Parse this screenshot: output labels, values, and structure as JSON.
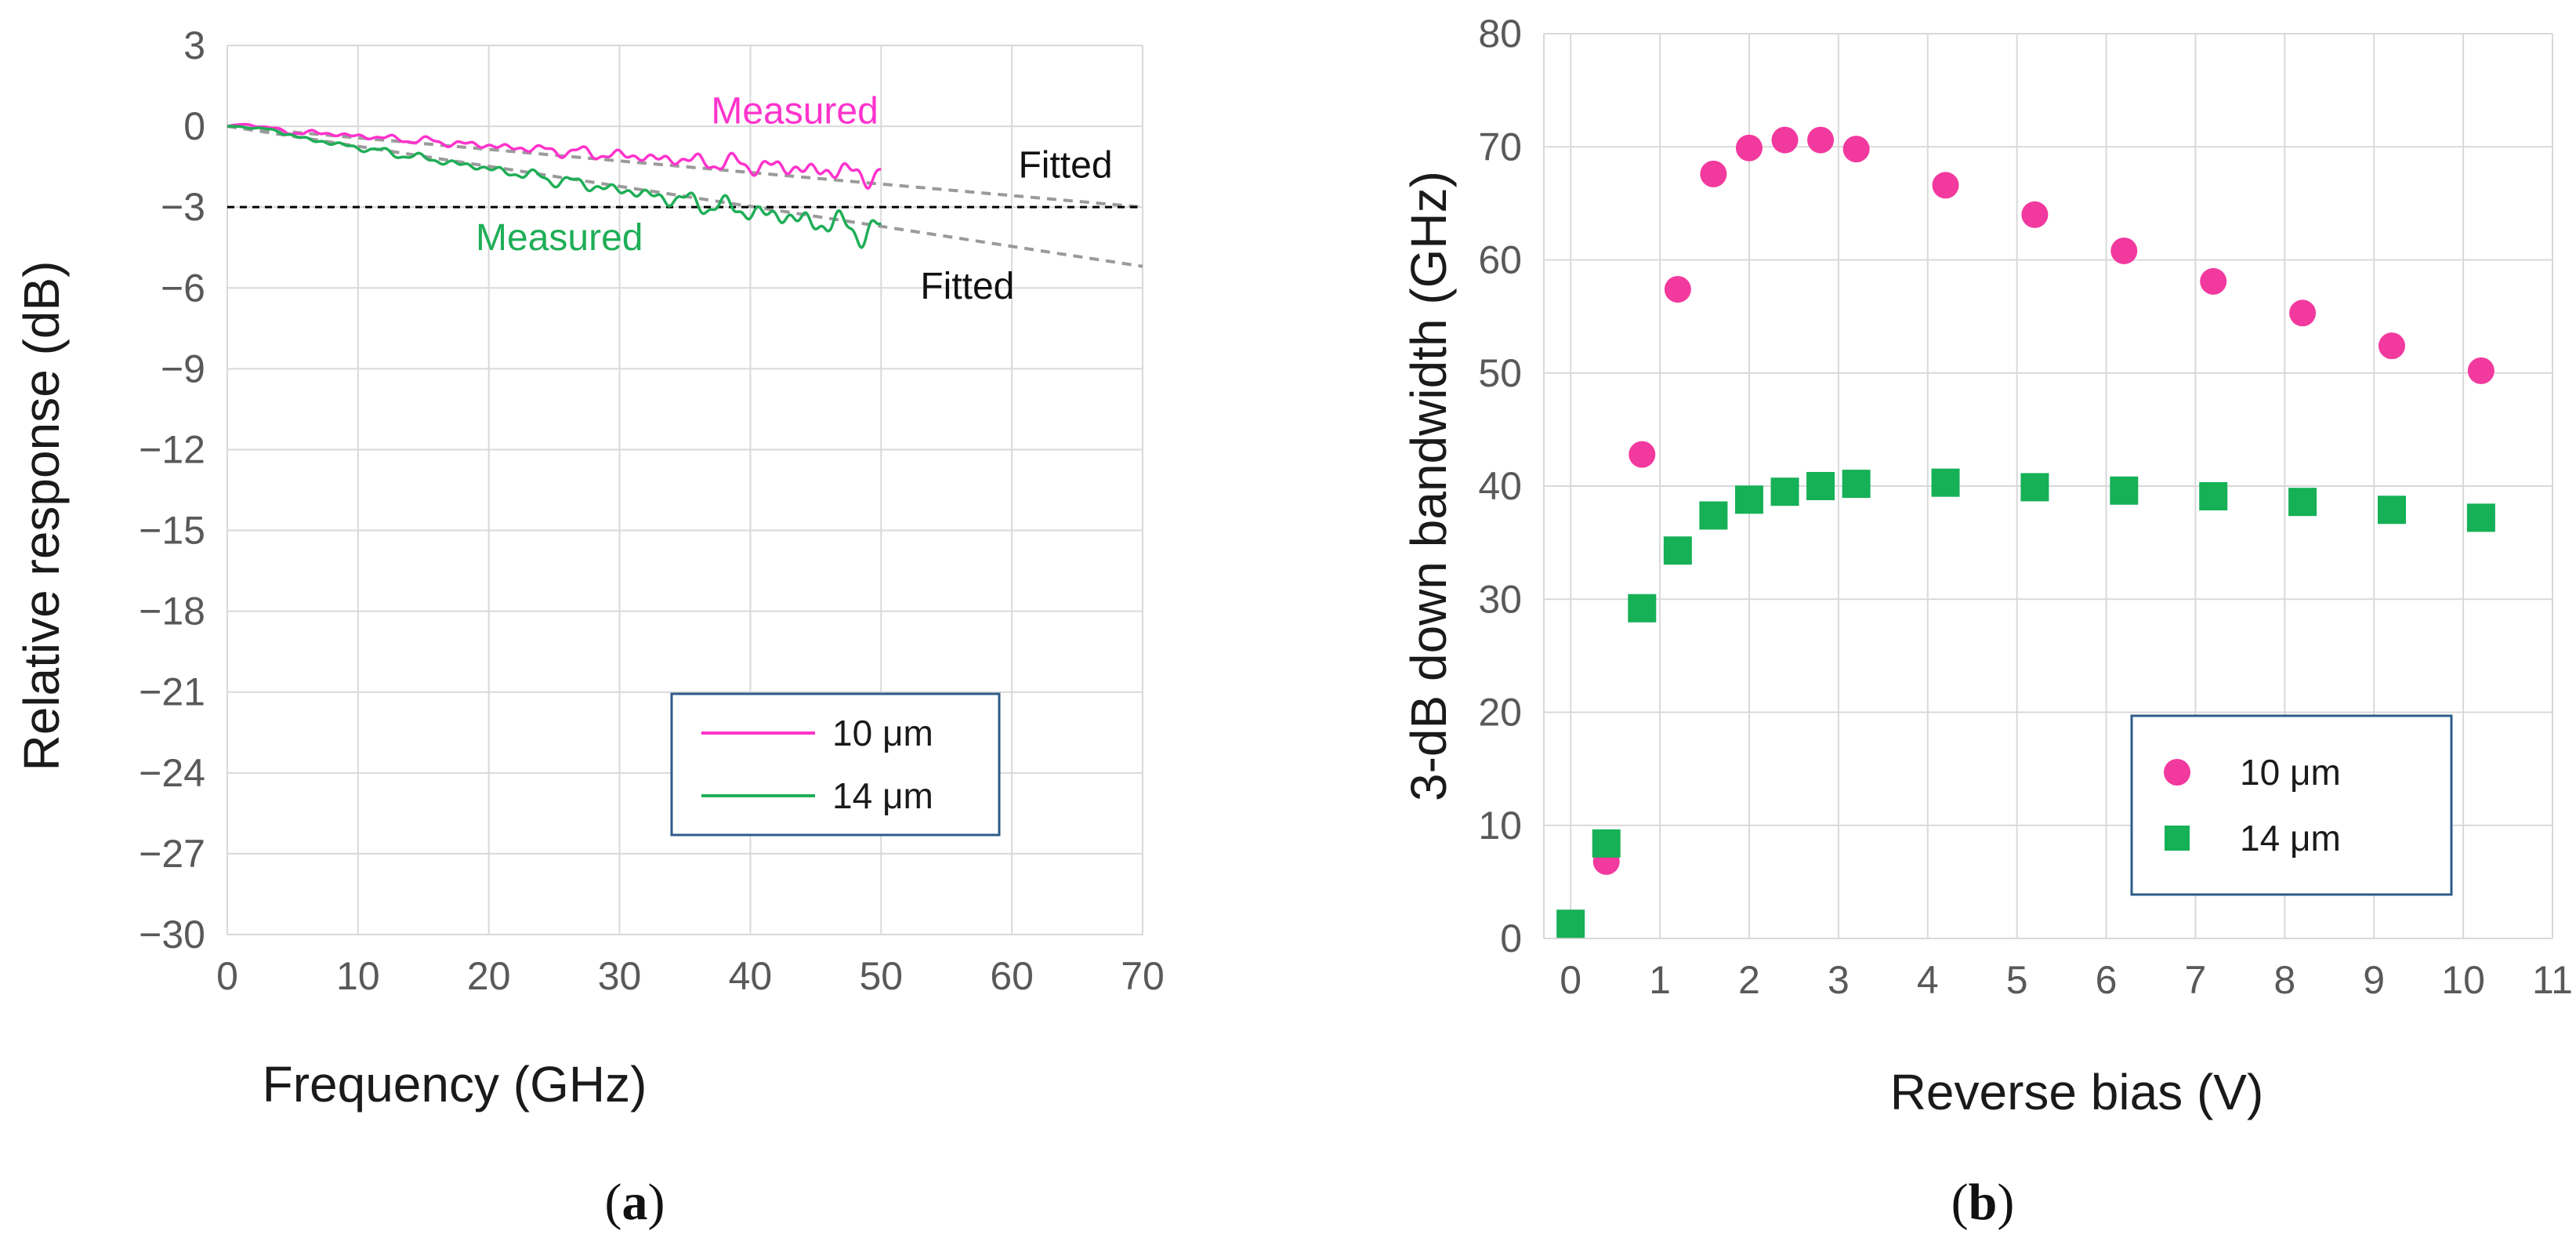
{
  "colors": {
    "pink": "#ff33cc",
    "pink_marker": "#f2399e",
    "green": "#1fae57",
    "green_marker": "#16b057",
    "fitted": "#9a9a9a",
    "threshold": "#000000",
    "grid": "#d9d9d9",
    "legend_border": "#2e5c8a"
  },
  "chart_data": [
    {
      "id": "a",
      "type": "line",
      "panel_label": {
        "open": "(",
        "letter": "a",
        "close": ")"
      },
      "xlabel": "Frequency (GHz)",
      "ylabel": "Relative response (dB)",
      "xlim": [
        0,
        70
      ],
      "ylim": [
        -30,
        3
      ],
      "xticks": [
        0,
        10,
        20,
        30,
        40,
        50,
        60,
        70
      ],
      "xtick_labels": [
        "0",
        "10",
        "20",
        "30",
        "40",
        "50",
        "60",
        "70"
      ],
      "yticks": [
        3,
        0,
        -3,
        -6,
        -9,
        -12,
        -15,
        -18,
        -21,
        -24,
        -27,
        -30
      ],
      "ytick_labels": [
        "3",
        "0",
        "−3",
        "−6",
        "−9",
        "−12",
        "−15",
        "−18",
        "−21",
        "−24",
        "−27",
        "−30"
      ],
      "grid": true,
      "legend": {
        "placement": "lower-right",
        "entries": [
          {
            "label": "10 μm",
            "color": "#ff33cc"
          },
          {
            "label": "14 μm",
            "color": "#1fae57"
          }
        ]
      },
      "series": [
        {
          "name": "10 μm measured",
          "color": "#ff33cc",
          "x_range": [
            0,
            50
          ],
          "trend_db_per_ghz": -0.036,
          "ripple_envelope_db": [
            0.1,
            0.45
          ],
          "endpoint_db": -2.0
        },
        {
          "name": "14 μm measured",
          "color": "#1fae57",
          "x_range": [
            0,
            50
          ],
          "trend_db_per_ghz": -0.079,
          "ripple_envelope_db": [
            0.1,
            0.55
          ],
          "endpoint_db": -4.2
        },
        {
          "name": "10 μm fitted",
          "color": "#9a9a9a",
          "dashed": true,
          "x": [
            0,
            70
          ],
          "y": [
            0,
            -3.0
          ]
        },
        {
          "name": "14 μm fitted",
          "color": "#9a9a9a",
          "dashed": true,
          "x": [
            0,
            70
          ],
          "y": [
            0,
            -5.2
          ]
        },
        {
          "name": "−3 dB level",
          "color": "#000000",
          "dashed": true,
          "x": [
            0,
            70
          ],
          "y": [
            -3,
            -3
          ]
        }
      ],
      "annotations": [
        {
          "text": "Measured",
          "color": "#ff33cc",
          "x": 37,
          "y": 0.1
        },
        {
          "text": "Fitted",
          "color": "#111111",
          "x": 60.5,
          "y": -1.9
        },
        {
          "text": "Measured",
          "color": "#1fae57",
          "x": 19,
          "y": -4.6
        },
        {
          "text": "Fitted",
          "color": "#111111",
          "x": 53,
          "y": -6.4
        }
      ]
    },
    {
      "id": "b",
      "type": "scatter",
      "panel_label": {
        "open": "(",
        "letter": "b",
        "close": ")"
      },
      "xlabel": "Reverse bias (V)",
      "ylabel": "3-dB down bandwidth (GHz)",
      "xlim": [
        -0.3,
        11
      ],
      "ylim": [
        0,
        80
      ],
      "xticks": [
        0,
        1,
        2,
        3,
        4,
        5,
        6,
        7,
        8,
        9,
        10,
        11
      ],
      "xtick_labels": [
        "0",
        "1",
        "2",
        "3",
        "4",
        "5",
        "6",
        "7",
        "8",
        "9",
        "10",
        "11"
      ],
      "yticks": [
        0,
        10,
        20,
        30,
        40,
        50,
        60,
        70,
        80
      ],
      "ytick_labels": [
        "0",
        "10",
        "20",
        "30",
        "40",
        "50",
        "60",
        "70",
        "80"
      ],
      "grid": true,
      "legend": {
        "placement": "lower-right",
        "entries": [
          {
            "label": "10 μm",
            "color": "#f2399e",
            "marker": "circle"
          },
          {
            "label": "14 μm",
            "color": "#16b057",
            "marker": "square"
          }
        ]
      },
      "series": [
        {
          "name": "10 μm",
          "marker": "circle",
          "color": "#f2399e",
          "x": [
            0.4,
            0.8,
            1.2,
            1.6,
            2.0,
            2.4,
            2.8,
            3.2,
            4.2,
            5.2,
            6.2,
            7.2,
            8.2,
            9.2,
            10.2
          ],
          "y": [
            6.8,
            42.8,
            57.4,
            67.6,
            69.9,
            70.6,
            70.6,
            69.8,
            66.6,
            64.0,
            60.8,
            58.1,
            55.3,
            52.4,
            50.2
          ]
        },
        {
          "name": "14 μm",
          "marker": "square",
          "color": "#16b057",
          "x": [
            0,
            0.4,
            0.8,
            1.2,
            1.6,
            2.0,
            2.4,
            2.8,
            3.2,
            4.2,
            5.2,
            6.2,
            7.2,
            8.2,
            9.2,
            10.2
          ],
          "y": [
            1.3,
            8.4,
            29.2,
            34.3,
            37.4,
            38.8,
            39.5,
            40.0,
            40.2,
            40.3,
            39.9,
            39.6,
            39.1,
            38.6,
            37.9,
            37.2
          ]
        }
      ]
    }
  ]
}
